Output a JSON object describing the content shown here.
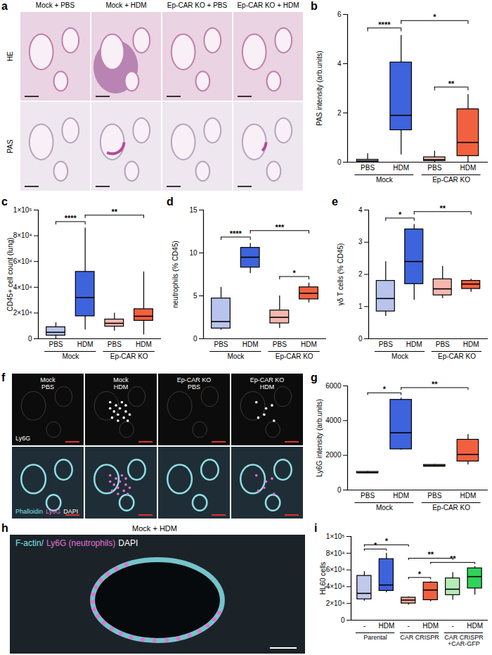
{
  "chart_data": [
    {
      "panel": "b",
      "type": "box",
      "ylabel": "PAS intensity (arb.units)",
      "categories": [
        "PBS",
        "HDM",
        "PBS",
        "HDM"
      ],
      "groups": [
        {
          "name": "Mock",
          "size": 2
        },
        {
          "name": "Ep-CAR KO",
          "size": 2
        }
      ],
      "colors": [
        "#b8c4ec",
        "#3d63dd",
        "#f6b8ae",
        "#f2613f"
      ],
      "boxes": [
        {
          "min": 0,
          "q1": 0,
          "median": 0.05,
          "q3": 0.1,
          "max": 0.35
        },
        {
          "min": 0.3,
          "q1": 1.3,
          "median": 1.9,
          "q3": 4.05,
          "max": 5.15
        },
        {
          "min": 0,
          "q1": 0.05,
          "median": 0.1,
          "q3": 0.2,
          "max": 0.45
        },
        {
          "min": 0,
          "q1": 0.25,
          "median": 0.8,
          "q3": 2.15,
          "max": 2.75
        }
      ],
      "comparisons": [
        {
          "from": 2,
          "to": 3,
          "label": "**"
        },
        {
          "from": 0,
          "to": 1,
          "label": "****"
        },
        {
          "from": 1,
          "to": 3,
          "label": "*"
        }
      ],
      "ylim": [
        0,
        6
      ],
      "yticks": [
        0,
        2,
        4,
        6
      ]
    },
    {
      "panel": "c",
      "type": "box",
      "ylabel": "CD45+ cell count (lung)",
      "categories": [
        "PBS",
        "HDM",
        "PBS",
        "HDM"
      ],
      "groups": [
        {
          "name": "Mock",
          "size": 2
        },
        {
          "name": "Ep-CAR KO",
          "size": 2
        }
      ],
      "colors": [
        "#b8c4ec",
        "#3d63dd",
        "#f6b8ae",
        "#f2613f"
      ],
      "boxes": [
        {
          "min": 0,
          "q1": 2500,
          "median": 5000,
          "q3": 9000,
          "max": 12500
        },
        {
          "min": 7000,
          "q1": 17500,
          "median": 32000,
          "q3": 52000,
          "max": 86000
        },
        {
          "min": 6000,
          "q1": 9500,
          "median": 12000,
          "q3": 15000,
          "max": 20000
        },
        {
          "min": 3000,
          "q1": 14000,
          "median": 17500,
          "q3": 23000,
          "max": 52000
        }
      ],
      "comparisons": [
        {
          "from": 0,
          "to": 1,
          "label": "****"
        },
        {
          "from": 1,
          "to": 3,
          "label": "**"
        }
      ],
      "ylim": [
        0,
        100000
      ],
      "yticks": [
        0,
        {
          "value": 20000,
          "label": "2×10⁴"
        },
        {
          "value": 40000,
          "label": "4×10⁴"
        },
        {
          "value": 60000,
          "label": "6×10⁴"
        },
        {
          "value": 80000,
          "label": "8×10⁴"
        },
        {
          "value": 100000,
          "label": "1×10⁵"
        }
      ]
    },
    {
      "panel": "d",
      "type": "box",
      "ylabel": "neutrophils (% CD45)",
      "categories": [
        "PBS",
        "HDM",
        "PBS",
        "HDM"
      ],
      "groups": [
        {
          "name": "Mock",
          "size": 2
        },
        {
          "name": "Ep-CAR KO",
          "size": 2
        }
      ],
      "colors": [
        "#b8c4ec",
        "#3d63dd",
        "#f6b8ae",
        "#f2613f"
      ],
      "boxes": [
        {
          "min": 1,
          "q1": 1.2,
          "median": 2,
          "q3": 4.7,
          "max": 6
        },
        {
          "min": 7.6,
          "q1": 8.3,
          "median": 9.5,
          "q3": 10.6,
          "max": 11.1
        },
        {
          "min": 1.2,
          "q1": 1.8,
          "median": 2.5,
          "q3": 3.3,
          "max": 5
        },
        {
          "min": 4.2,
          "q1": 4.6,
          "median": 5.3,
          "q3": 6,
          "max": 6.5
        }
      ],
      "comparisons": [
        {
          "from": 2,
          "to": 3,
          "label": "*"
        },
        {
          "from": 0,
          "to": 1,
          "label": "****"
        },
        {
          "from": 1,
          "to": 3,
          "label": "***"
        }
      ],
      "ylim": [
        0,
        15
      ],
      "yticks": [
        0,
        5,
        10,
        15
      ]
    },
    {
      "panel": "e",
      "type": "box",
      "ylabel": "γδ T cells (% CD45)",
      "categories": [
        "PBS",
        "HDM",
        "PBS",
        "HDM"
      ],
      "groups": [
        {
          "name": "Mock",
          "size": 2
        },
        {
          "name": "Ep-CAR KO",
          "size": 2
        }
      ],
      "colors": [
        "#b8c4ec",
        "#3d63dd",
        "#f6b8ae",
        "#f2613f"
      ],
      "boxes": [
        {
          "min": 0.7,
          "q1": 0.85,
          "median": 1.25,
          "q3": 1.8,
          "max": 2.4
        },
        {
          "min": 1.2,
          "q1": 1.7,
          "median": 2.4,
          "q3": 3.4,
          "max": 3.55
        },
        {
          "min": 1.25,
          "q1": 1.35,
          "median": 1.55,
          "q3": 1.85,
          "max": 2.25
        },
        {
          "min": 1.45,
          "q1": 1.55,
          "median": 1.7,
          "q3": 1.8,
          "max": 1.85
        }
      ],
      "comparisons": [
        {
          "from": 0,
          "to": 1,
          "label": "*"
        },
        {
          "from": 1,
          "to": 3,
          "label": "**"
        }
      ],
      "ylim": [
        0,
        4
      ],
      "yticks": [
        0,
        1,
        2,
        3,
        4
      ]
    },
    {
      "panel": "g",
      "type": "box",
      "ylabel": "Ly6G intensity (arb.units)",
      "categories": [
        "PBS",
        "HDM",
        "PBS",
        "HDM"
      ],
      "groups": [
        {
          "name": "Mock",
          "size": 2
        },
        {
          "name": "Ep-CAR KO",
          "size": 2
        }
      ],
      "colors": [
        "#b8c4ec",
        "#3d63dd",
        "#f6b8ae",
        "#f2613f"
      ],
      "boxes": [
        {
          "min": 950,
          "q1": 980,
          "median": 1000,
          "q3": 1050,
          "max": 1080
        },
        {
          "min": 2300,
          "q1": 2350,
          "median": 3300,
          "q3": 5200,
          "max": 5300
        },
        {
          "min": 1330,
          "q1": 1350,
          "median": 1400,
          "q3": 1450,
          "max": 1480
        },
        {
          "min": 1450,
          "q1": 1650,
          "median": 2050,
          "q3": 2900,
          "max": 3200
        }
      ],
      "comparisons": [
        {
          "from": 0,
          "to": 1,
          "label": "*"
        },
        {
          "from": 1,
          "to": 3,
          "label": "**"
        }
      ],
      "ylim": [
        0,
        6000
      ],
      "yticks": [
        0,
        2000,
        4000,
        6000
      ]
    },
    {
      "panel": "i",
      "type": "box",
      "ylabel": "HL60 cells",
      "categories": [
        "-",
        "HDM",
        "-",
        "HDM",
        "-",
        "HDM"
      ],
      "groups": [
        {
          "name": "Parental",
          "size": 2
        },
        {
          "name": "CAR CRISPR",
          "size": 2
        },
        {
          "name": "CAR CRISPR\n+CAR-GFP",
          "size": 2
        }
      ],
      "colors": [
        "#c0c8ec",
        "#3d63dd",
        "#f4a898",
        "#f2613f",
        "#b6ecb8",
        "#2fd45a"
      ],
      "boxes": [
        {
          "min": 23000,
          "q1": 25000,
          "median": 32000,
          "q3": 53000,
          "max": 58000
        },
        {
          "min": 33000,
          "q1": 35000,
          "median": 42000,
          "q3": 73000,
          "max": 80000
        },
        {
          "min": 18000,
          "q1": 20000,
          "median": 24000,
          "q3": 27000,
          "max": 28000
        },
        {
          "min": 22000,
          "q1": 24000,
          "median": 36000,
          "q3": 45000,
          "max": 46000
        },
        {
          "min": 24000,
          "q1": 30000,
          "median": 37000,
          "q3": 50000,
          "max": 57000
        },
        {
          "min": 30000,
          "q1": 38000,
          "median": 52000,
          "q3": 62000,
          "max": 64000
        }
      ],
      "comparisons": [
        {
          "from": 2,
          "to": 3,
          "label": "*"
        },
        {
          "from": 3,
          "to": 5,
          "label": "**"
        },
        {
          "from": 2,
          "to": 4,
          "label": "**"
        },
        {
          "from": 0,
          "to": 1,
          "label": "*"
        },
        {
          "from": 0,
          "to": 2,
          "label": "*"
        }
      ],
      "ylim": [
        0,
        100000
      ],
      "yticks": [
        0,
        {
          "value": 20000,
          "label": "2×10⁴"
        },
        {
          "value": 40000,
          "label": "4×10⁴"
        },
        {
          "value": 60000,
          "label": "6×10⁴"
        },
        {
          "value": 80000,
          "label": "8×10⁴"
        },
        {
          "value": 100000,
          "label": "1×10⁵"
        }
      ]
    }
  ],
  "image_panels": [
    {
      "panel": "a",
      "columns": [
        "Mock + PBS",
        "Mock + HDM",
        "Ep-CAR KO + PBS",
        "Ep-CAR KO + HDM"
      ],
      "rows": [
        "HE",
        "PAS"
      ]
    },
    {
      "panel": "f",
      "columns": [
        "Mock\nPBS",
        "Mock\nHDM",
        "Ep-CAR KO\nPBS",
        "Ep-CAR KO\nHDM"
      ],
      "rows": [
        [
          {
            "text": "Ly6G",
            "color": "#ffffff"
          }
        ],
        [
          {
            "text": "Phalloidin",
            "color": "#7fe3e8"
          },
          {
            "text": "Ly6G",
            "color": "#e56fd6"
          },
          {
            "text": "DAPI",
            "color": "#ffffff"
          }
        ]
      ]
    },
    {
      "panel": "h",
      "title": "Mock + HDM",
      "legend": [
        {
          "text": "F-actin/",
          "color": "#7fe3e8"
        },
        {
          "text": "Ly6G (neutrophils)",
          "color": "#e56fd6"
        },
        {
          "text": "DAPI",
          "color": "#ffffff"
        }
      ]
    }
  ]
}
